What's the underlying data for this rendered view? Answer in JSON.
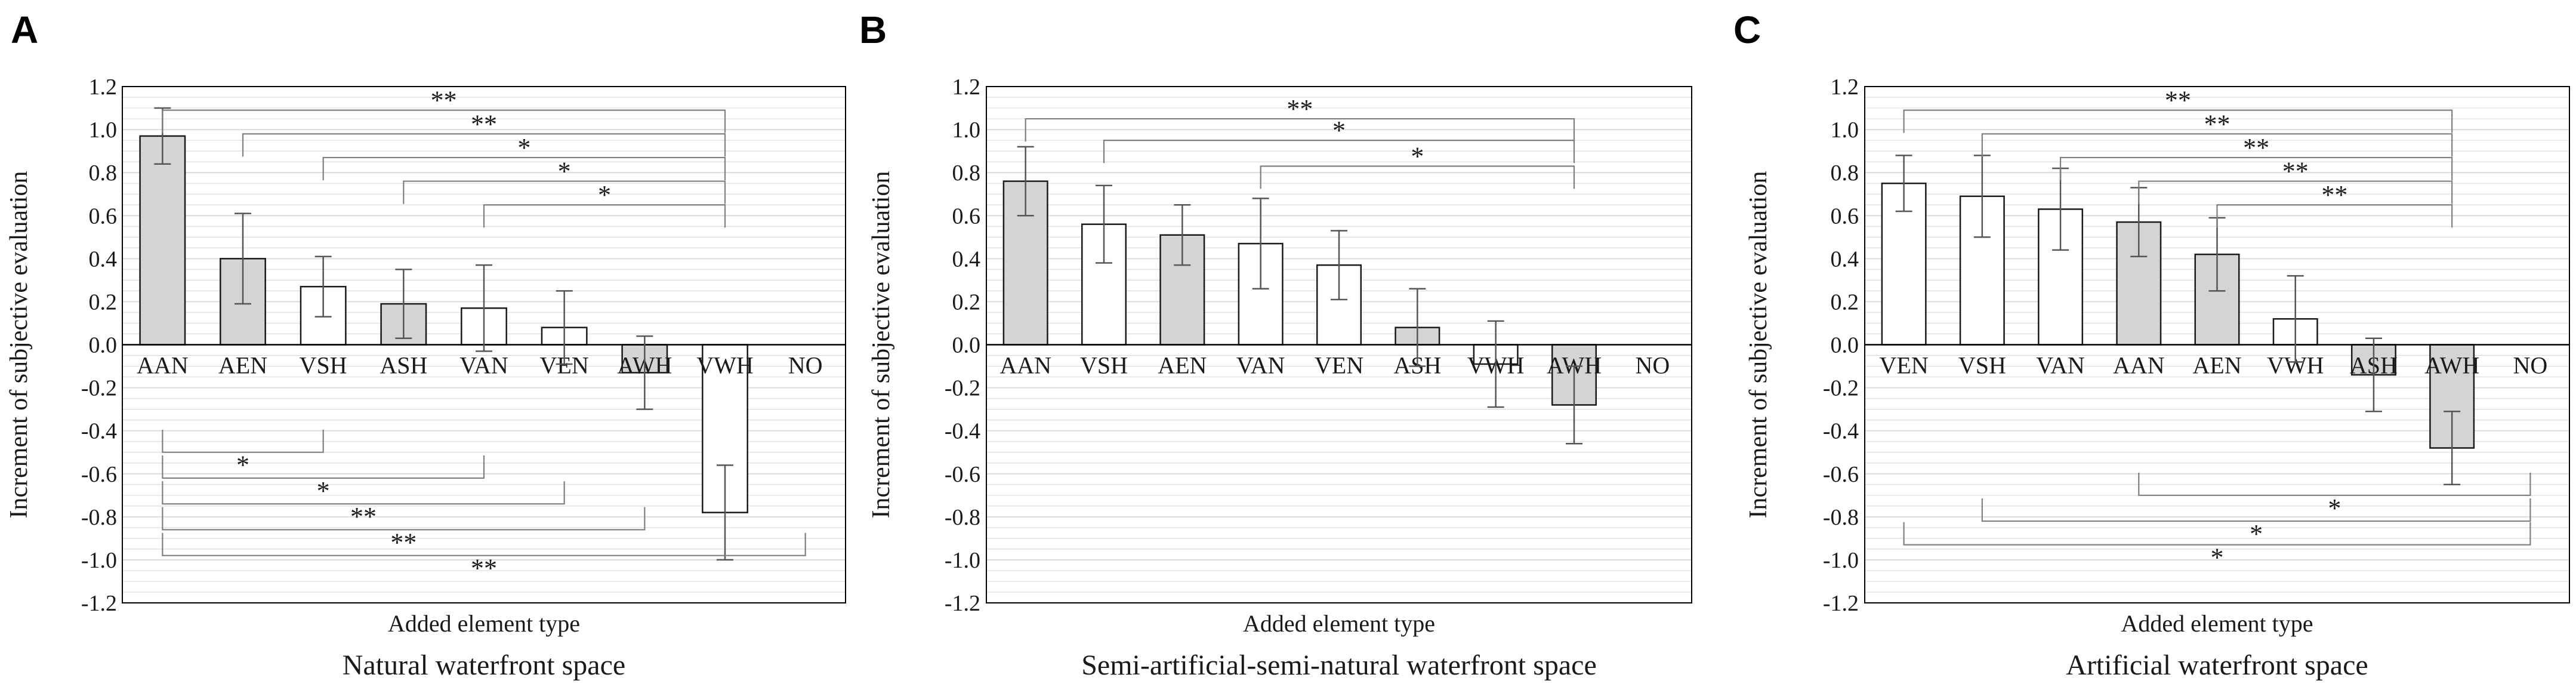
{
  "colors": {
    "gray_bar": "#d4d4d4",
    "white_bar": "#ffffff",
    "bar_stroke": "#1a1a1a",
    "error_bar": "#555555",
    "bracket": "#7f7f7f",
    "grid": "#dcdcdc",
    "frame": "#000000"
  },
  "chart_data": [
    {
      "type": "bar",
      "panel_label": "A",
      "subtitle": "Natural waterfront space",
      "xlabel": "Added element type",
      "ylabel": "Increment of subjective evaluation",
      "ylim": [
        -1.2,
        1.2
      ],
      "yticks": [
        "1.2",
        "1.0",
        "0.8",
        "0.6",
        "0.4",
        "0.2",
        "0.0",
        "-0.2",
        "-0.4",
        "-0.6",
        "-0.8",
        "-1.0",
        "-1.2"
      ],
      "grid": true,
      "categories": [
        "AAN",
        "AEN",
        "VSH",
        "ASH",
        "VAN",
        "VEN",
        "AWH",
        "VWH",
        "NO"
      ],
      "values": [
        0.97,
        0.4,
        0.27,
        0.19,
        0.17,
        0.08,
        -0.13,
        -0.78,
        null
      ],
      "errors": [
        0.13,
        0.21,
        0.14,
        0.16,
        0.2,
        0.17,
        0.17,
        0.22,
        null
      ],
      "fill": [
        "gray",
        "gray",
        "white",
        "gray",
        "white",
        "white",
        "gray",
        "white",
        "none"
      ],
      "brackets": [
        {
          "from": 0,
          "to": 7,
          "y": 1.09,
          "label": "**"
        },
        {
          "from": 1,
          "to": 7,
          "y": 0.98,
          "label": "**"
        },
        {
          "from": 2,
          "to": 7,
          "y": 0.87,
          "label": "*"
        },
        {
          "from": 3,
          "to": 7,
          "y": 0.76,
          "label": "*"
        },
        {
          "from": 4,
          "to": 7,
          "y": 0.65,
          "label": "*"
        },
        {
          "from": 0,
          "to": 2,
          "y": -0.5,
          "label": "*"
        },
        {
          "from": 0,
          "to": 4,
          "y": -0.62,
          "label": "*"
        },
        {
          "from": 0,
          "to": 5,
          "y": -0.74,
          "label": "**"
        },
        {
          "from": 0,
          "to": 6,
          "y": -0.86,
          "label": "**"
        },
        {
          "from": 0,
          "to": 8,
          "y": -0.98,
          "label": "**"
        }
      ]
    },
    {
      "type": "bar",
      "panel_label": "B",
      "subtitle": "Semi-artificial-semi-natural waterfront space",
      "xlabel": "Added element type",
      "ylabel": "Increment of subjective evaluation",
      "ylim": [
        -1.2,
        1.2
      ],
      "yticks": [
        "1.2",
        "1.0",
        "0.8",
        "0.6",
        "0.4",
        "0.2",
        "0.0",
        "-0.2",
        "-0.4",
        "-0.6",
        "-0.8",
        "-1.0",
        "-1.2"
      ],
      "grid": true,
      "categories": [
        "AAN",
        "VSH",
        "AEN",
        "VAN",
        "VEN",
        "ASH",
        "VWH",
        "AWH",
        "NO"
      ],
      "values": [
        0.76,
        0.56,
        0.51,
        0.47,
        0.37,
        0.08,
        -0.09,
        -0.28,
        null
      ],
      "errors": [
        0.16,
        0.18,
        0.14,
        0.21,
        0.16,
        0.18,
        0.2,
        0.18,
        null
      ],
      "fill": [
        "gray",
        "white",
        "gray",
        "white",
        "white",
        "gray",
        "white",
        "gray",
        "none"
      ],
      "brackets": [
        {
          "from": 0,
          "to": 7,
          "y": 1.05,
          "label": "**"
        },
        {
          "from": 1,
          "to": 7,
          "y": 0.95,
          "label": "*"
        },
        {
          "from": 3,
          "to": 7,
          "y": 0.83,
          "label": "*"
        }
      ]
    },
    {
      "type": "bar",
      "panel_label": "C",
      "subtitle": "Artificial waterfront space",
      "xlabel": "Added element type",
      "ylabel": "Increment of subjective evaluation",
      "ylim": [
        -1.2,
        1.2
      ],
      "yticks": [
        "1.2",
        "1.0",
        "0.8",
        "0.6",
        "0.4",
        "0.2",
        "0.0",
        "-0.2",
        "-0.4",
        "-0.6",
        "-0.8",
        "-1.0",
        "-1.2"
      ],
      "grid": true,
      "categories": [
        "VEN",
        "VSH",
        "VAN",
        "AAN",
        "AEN",
        "VWH",
        "ASH",
        "AWH",
        "NO"
      ],
      "values": [
        0.75,
        0.69,
        0.63,
        0.57,
        0.42,
        0.12,
        -0.14,
        -0.48,
        null
      ],
      "errors": [
        0.13,
        0.19,
        0.19,
        0.16,
        0.17,
        0.2,
        0.17,
        0.17,
        null
      ],
      "fill": [
        "white",
        "white",
        "white",
        "gray",
        "gray",
        "white",
        "gray",
        "gray",
        "none"
      ],
      "brackets": [
        {
          "from": 0,
          "to": 7,
          "y": 1.09,
          "label": "**"
        },
        {
          "from": 1,
          "to": 7,
          "y": 0.98,
          "label": "**"
        },
        {
          "from": 2,
          "to": 7,
          "y": 0.87,
          "label": "**"
        },
        {
          "from": 3,
          "to": 7,
          "y": 0.76,
          "label": "**"
        },
        {
          "from": 4,
          "to": 7,
          "y": 0.65,
          "label": "**"
        },
        {
          "from": 3,
          "to": 8,
          "y": -0.7,
          "label": "*"
        },
        {
          "from": 1,
          "to": 8,
          "y": -0.82,
          "label": "*"
        },
        {
          "from": 0,
          "to": 8,
          "y": -0.93,
          "label": "*"
        }
      ]
    }
  ]
}
